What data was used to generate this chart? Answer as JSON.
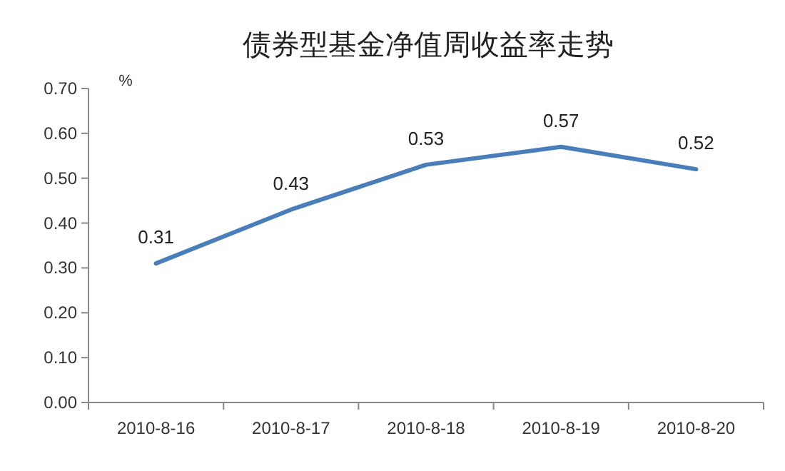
{
  "chart_data": {
    "type": "line",
    "title": "债券型基金净值周收益率走势",
    "ylabel": "%",
    "categories": [
      "2010-8-16",
      "2010-8-17",
      "2010-8-18",
      "2010-8-19",
      "2010-8-20"
    ],
    "series": [
      {
        "color": "#4a7ebb",
        "values": [
          0.31,
          0.43,
          0.53,
          0.57,
          0.52
        ]
      }
    ],
    "ylim": [
      0,
      0.7
    ],
    "yticks": [
      {
        "value": 0,
        "label": "0.00"
      },
      {
        "value": 0.1,
        "label": "0.10"
      },
      {
        "value": 0.2,
        "label": "0.20"
      },
      {
        "value": 0.3,
        "label": "0.30"
      },
      {
        "value": 0.4,
        "label": "0.40"
      },
      {
        "value": 0.5,
        "label": "0.50"
      },
      {
        "value": 0.6,
        "label": "0.60"
      },
      {
        "value": 0.7,
        "label": "0.70"
      }
    ],
    "data_labels": true,
    "grid": false
  }
}
